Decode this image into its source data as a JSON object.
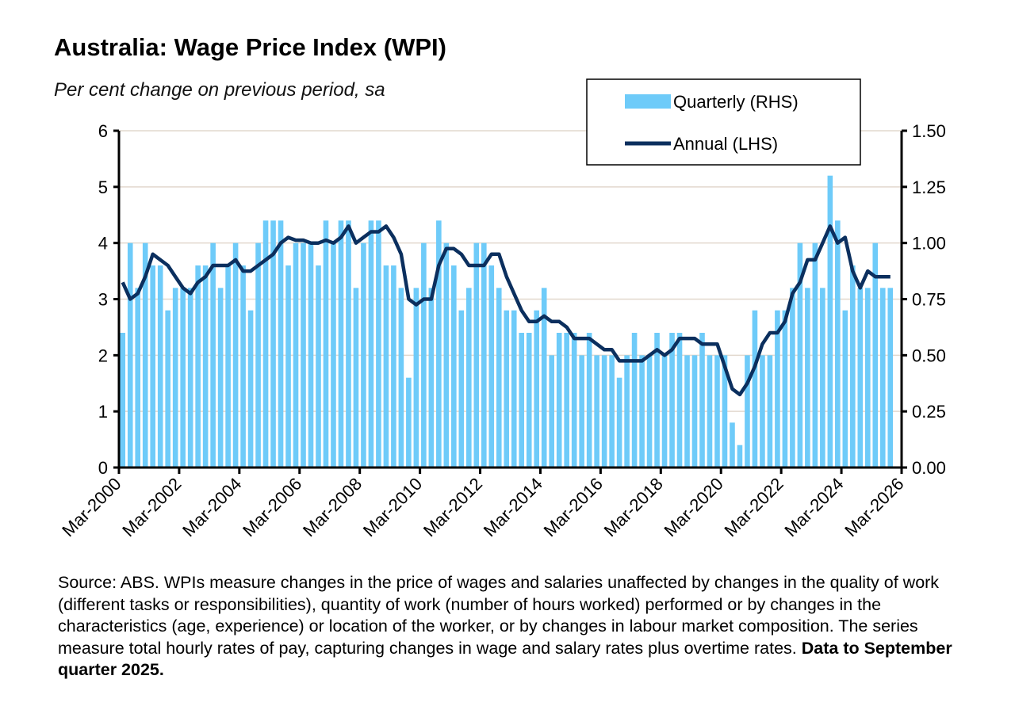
{
  "title": "Australia: Wage Price Index (WPI)",
  "subtitle": "Per cent change on previous period, sa",
  "footnote": {
    "text": "Source: ABS.  WPIs measure changes in the price of wages and salaries unaffected by changes in the quality of work (different tasks or responsibilities), quantity of work (number of hours worked) performed or by changes in the characteristics (age, experience) or location of the worker, or by changes in labour market composition.  The series measure total hourly rates of pay, capturing changes in wage and salary rates plus overtime rates.",
    "bold": "Data to September quarter 2025."
  },
  "colors": {
    "bars": "#6ECBF9",
    "line": "#0B2F5E",
    "grid": "#E2D8CE"
  },
  "chart_data": {
    "type": "bar+line",
    "x_start": "Mar-2000",
    "x_end": "Sep-2025",
    "frequency": "quarterly",
    "x_ticks": [
      "Mar-2000",
      "Mar-2002",
      "Mar-2004",
      "Mar-2006",
      "Mar-2008",
      "Mar-2010",
      "Mar-2012",
      "Mar-2014",
      "Mar-2016",
      "Mar-2018",
      "Mar-2020",
      "Mar-2022",
      "Mar-2024",
      "Mar-2026"
    ],
    "y_left": {
      "ylim": [
        0,
        6
      ],
      "ticks": [
        "0",
        "1",
        "2",
        "3",
        "4",
        "5",
        "6"
      ]
    },
    "y_right": {
      "ylim": [
        0,
        1.5
      ],
      "ticks": [
        "0.00",
        "0.25",
        "0.50",
        "0.75",
        "1.00",
        "1.25",
        "1.50"
      ]
    },
    "grid": true,
    "legend_placement": "top-right",
    "series": [
      {
        "name": "Quarterly (RHS)",
        "axis": "right",
        "type": "bar",
        "values": [
          0.6,
          1.0,
          0.8,
          1.0,
          0.9,
          0.9,
          0.7,
          0.8,
          0.8,
          0.8,
          0.9,
          0.9,
          1.0,
          0.8,
          0.9,
          1.0,
          0.9,
          0.7,
          1.0,
          1.1,
          1.1,
          1.1,
          0.9,
          1.0,
          1.0,
          1.0,
          0.9,
          1.1,
          1.0,
          1.1,
          1.1,
          0.8,
          1.0,
          1.1,
          1.1,
          0.9,
          0.9,
          0.8,
          0.4,
          0.8,
          1.0,
          0.8,
          1.1,
          1.0,
          0.9,
          0.7,
          0.8,
          1.0,
          1.0,
          0.9,
          0.8,
          0.7,
          0.7,
          0.6,
          0.6,
          0.7,
          0.8,
          0.5,
          0.6,
          0.6,
          0.6,
          0.5,
          0.6,
          0.5,
          0.5,
          0.5,
          0.4,
          0.5,
          0.6,
          0.5,
          0.5,
          0.6,
          0.5,
          0.6,
          0.6,
          0.5,
          0.5,
          0.6,
          0.5,
          0.5,
          0.5,
          0.2,
          0.1,
          0.5,
          0.7,
          0.5,
          0.5,
          0.7,
          0.7,
          0.8,
          1.0,
          0.8,
          1.0,
          0.8,
          1.3,
          1.1,
          0.7,
          0.9,
          0.8,
          0.8,
          1.0,
          0.8,
          0.8
        ]
      },
      {
        "name": "Annual (LHS)",
        "axis": "left",
        "type": "line",
        "values": [
          3.3,
          3.0,
          3.1,
          3.4,
          3.8,
          3.7,
          3.6,
          3.4,
          3.2,
          3.1,
          3.3,
          3.4,
          3.6,
          3.6,
          3.6,
          3.7,
          3.5,
          3.5,
          3.6,
          3.7,
          3.8,
          4.0,
          4.1,
          4.05,
          4.05,
          4.0,
          4.0,
          4.05,
          4.0,
          4.1,
          4.3,
          4.0,
          4.1,
          4.2,
          4.2,
          4.3,
          4.1,
          3.8,
          3.0,
          2.9,
          3.0,
          3.0,
          3.6,
          3.9,
          3.9,
          3.8,
          3.6,
          3.6,
          3.6,
          3.8,
          3.8,
          3.4,
          3.1,
          2.8,
          2.6,
          2.6,
          2.7,
          2.6,
          2.6,
          2.5,
          2.3,
          2.3,
          2.3,
          2.2,
          2.1,
          2.1,
          1.9,
          1.9,
          1.9,
          1.9,
          2.0,
          2.1,
          2.0,
          2.1,
          2.3,
          2.3,
          2.3,
          2.2,
          2.2,
          2.2,
          1.8,
          1.4,
          1.3,
          1.5,
          1.8,
          2.2,
          2.4,
          2.4,
          2.6,
          3.1,
          3.3,
          3.7,
          3.7,
          4.0,
          4.3,
          4.0,
          4.1,
          3.5,
          3.2,
          3.5,
          3.4,
          3.4,
          3.4
        ]
      }
    ]
  }
}
